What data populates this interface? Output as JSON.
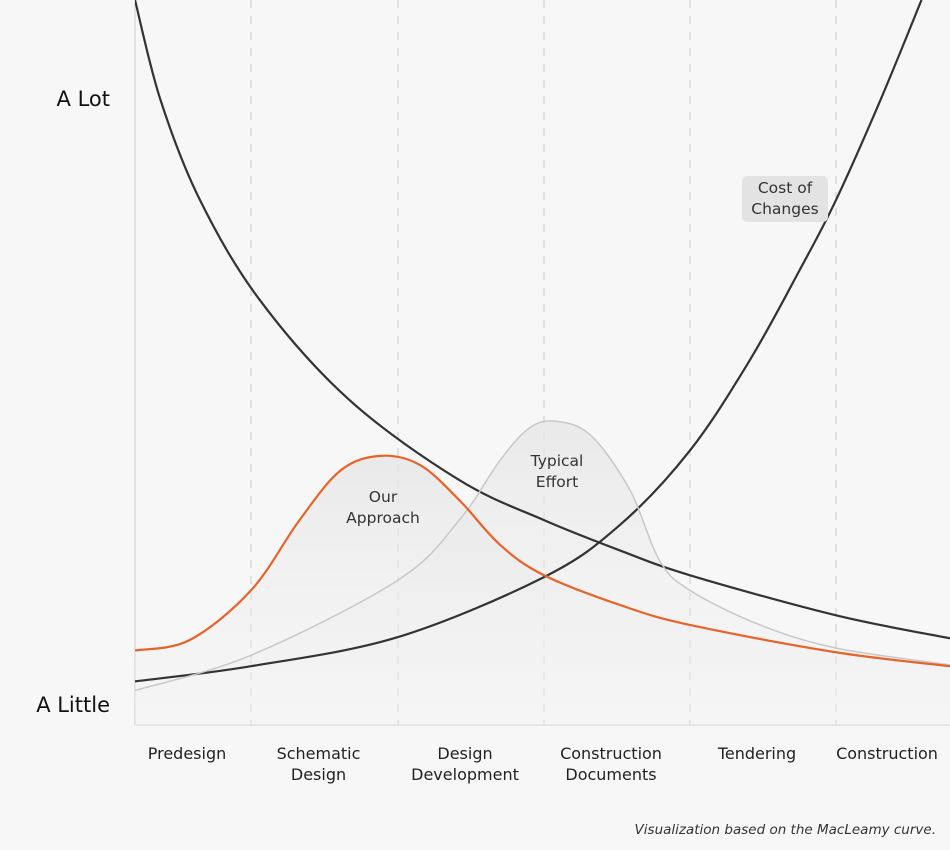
{
  "chart_data": {
    "type": "line",
    "categories": [
      "Predesign",
      "Schematic Design",
      "Design Development",
      "Construction Documents",
      "Tendering",
      "Construction"
    ],
    "xlim": [
      0,
      6
    ],
    "ylim": [
      -3.1,
      116.5
    ],
    "yticks": [
      {
        "value": 100,
        "label": "A Lot"
      },
      {
        "value": 0,
        "label": "A Little"
      }
    ],
    "series": [
      {
        "color": "#333333",
        "x": [
          0,
          0.22,
          0.56,
          1.06,
          1.67,
          2.42,
          3,
          3.52,
          4,
          5,
          6
        ],
        "values": [
          116.5,
          100,
          83.5,
          67,
          50.5,
          37.3,
          30.7,
          25.7,
          21.6,
          15,
          11.2
        ]
      },
      {
        "name": "Cost of Changes",
        "color": "#333333",
        "x": [
          0,
          1,
          2,
          3,
          3.52,
          4,
          4.41,
          4.75,
          5,
          5.39,
          5.75
        ],
        "values": [
          4.1,
          6.6,
          11.4,
          21.3,
          29.9,
          42.2,
          57.1,
          71.9,
          83.5,
          100,
          116.5
        ]
      },
      {
        "name": "Typical Effort",
        "color": "#c8c8c8",
        "area": true,
        "x": [
          0,
          1,
          2,
          2.42,
          2.7,
          2.9,
          3.08,
          3.32,
          3.59,
          3.79,
          4,
          4.48,
          5,
          6
        ],
        "values": [
          2.6,
          8.4,
          20.8,
          30.7,
          40.6,
          45.9,
          47.0,
          44.7,
          35.6,
          24.1,
          19.1,
          13.4,
          9.6,
          6.8
        ]
      },
      {
        "name": "Our Approach",
        "color": "#e8632a",
        "area": true,
        "x": [
          0,
          0.47,
          1,
          1.33,
          1.61,
          1.88,
          2.15,
          2.42,
          2.7,
          3,
          3.52,
          4,
          5,
          6
        ],
        "values": [
          9.2,
          10.9,
          19.1,
          30.7,
          38.9,
          41.3,
          39.8,
          34.0,
          26.6,
          21.6,
          16.7,
          13.4,
          8.9,
          6.6
        ]
      }
    ],
    "footnote": "Visualization based on the MacLeamy curve."
  }
}
